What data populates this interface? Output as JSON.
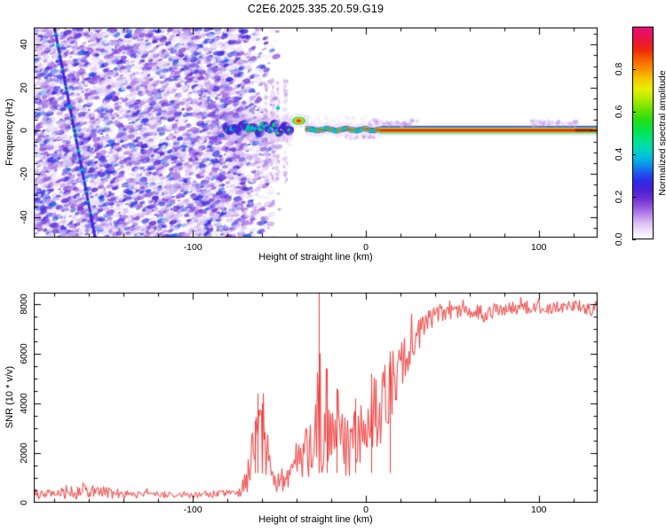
{
  "title": "C2E6.2025.335.20.59.G19",
  "colors": {
    "background": "#ffffff",
    "axis": "#000000",
    "snr_line": "#ee3a3a",
    "noise_purple": "#8f4bd6",
    "band_dark_red": "#8a1212"
  },
  "chart_data": [
    {
      "type": "heatmap",
      "name": "doppler-spectrogram",
      "xlabel": "Height of straight line (km)",
      "ylabel": "Frequency (Hz)",
      "xlim": [
        -192,
        134
      ],
      "ylim": [
        -49.6,
        47.9
      ],
      "x_ticks": {
        "labels": [
          "-100",
          "0",
          "100"
        ],
        "values": [
          -100,
          0,
          100
        ],
        "minor_step": 20
      },
      "y_ticks": {
        "labels": [
          "-40",
          "-20",
          "0",
          "20",
          "40"
        ],
        "values": [
          -40,
          -20,
          0,
          20,
          40
        ],
        "minor_step": 5
      },
      "colorbar": {
        "label": "Normalized spectral amplitude",
        "ticks": {
          "labels": [
            "0.0",
            "0.2",
            "0.4",
            "0.6",
            "0.8"
          ],
          "values": [
            0,
            0.2,
            0.4,
            0.6,
            0.8
          ]
        },
        "range": [
          0,
          1
        ],
        "stops": [
          [
            0.0,
            "#ffffff"
          ],
          [
            0.03,
            "#f1e8fb"
          ],
          [
            0.07,
            "#ddc2f4"
          ],
          [
            0.11,
            "#bb8aea"
          ],
          [
            0.15,
            "#9355dd"
          ],
          [
            0.19,
            "#6d2ed3"
          ],
          [
            0.23,
            "#4a21d6"
          ],
          [
            0.27,
            "#2f2ae2"
          ],
          [
            0.31,
            "#1f55ee"
          ],
          [
            0.35,
            "#0b93ea"
          ],
          [
            0.39,
            "#00c3d8"
          ],
          [
            0.43,
            "#00d9b4"
          ],
          [
            0.47,
            "#00e382"
          ],
          [
            0.52,
            "#07e340"
          ],
          [
            0.57,
            "#2ede0f"
          ],
          [
            0.62,
            "#77e400"
          ],
          [
            0.67,
            "#bdec00"
          ],
          [
            0.71,
            "#e8ef00"
          ],
          [
            0.76,
            "#f6c300"
          ],
          [
            0.8,
            "#f89300"
          ],
          [
            0.85,
            "#f55f00"
          ],
          [
            0.89,
            "#ef2a0a"
          ],
          [
            0.94,
            "#e81440"
          ],
          [
            1.0,
            "#e60f77"
          ]
        ]
      },
      "features": {
        "seed": 1335,
        "noise_field": {
          "km_range": [
            -192,
            -76
          ],
          "fade_end_km": -49,
          "blob_count": 7000
        },
        "vertical_striations_km": [
          -57.5,
          -54,
          -51,
          -46.5
        ],
        "diagonal_streak": {
          "from": [
            -180,
            47.9
          ],
          "to": [
            -156.5,
            -49.6
          ]
        },
        "signal_band": {
          "blob_segment": {
            "km_range": [
              -80.5,
              -43
            ],
            "hz_center": 1.2,
            "hz_jitter": 2.2
          },
          "bright_blob": {
            "km_range": [
              -42,
              -35.5
            ],
            "hz": 4.6
          },
          "dash_segment": {
            "km_range": [
              -35,
              8
            ],
            "hz_center": 0.5
          },
          "solid_segment": {
            "km_range": [
              8,
              134
            ],
            "hz_center": 0.2
          },
          "dark_red_segment_km": [
            121,
            131
          ],
          "stray_dot": {
            "km": -50.8,
            "hz": 10.5
          }
        },
        "fuzz_above_band_km": [
          [
            2,
            30
          ],
          [
            95,
            122
          ]
        ],
        "fuzz_below_band_km": [
          [
            -12,
            6
          ]
        ]
      }
    },
    {
      "type": "line",
      "name": "snr-profile",
      "xlabel": "Height of straight line (km)",
      "ylabel": "SNR (10 * v/v)",
      "xlim": [
        -192,
        134
      ],
      "ylim": [
        0,
        8470
      ],
      "x_ticks": {
        "labels": [
          "-100",
          "0",
          "100"
        ],
        "values": [
          -100,
          0,
          100
        ],
        "minor_step": 20
      },
      "y_ticks": {
        "labels": [
          "0",
          "2000",
          "4000",
          "6000",
          "8000"
        ],
        "values": [
          0,
          2000,
          4000,
          6000,
          8000
        ],
        "minor_step": 500
      },
      "series": [
        {
          "name": "SNR",
          "color": "#ee3a3a",
          "profile_km_base_noise": [
            [
              -192,
              280,
              180
            ],
            [
              -183,
              300,
              200
            ],
            [
              -175,
              380,
              280
            ],
            [
              -164,
              420,
              330
            ],
            [
              -155,
              380,
              280
            ],
            [
              -145,
              330,
              200
            ],
            [
              -135,
              300,
              150
            ],
            [
              -120,
              300,
              140
            ],
            [
              -105,
              300,
              140
            ],
            [
              -90,
              310,
              150
            ],
            [
              -80,
              330,
              160
            ],
            [
              -73,
              400,
              200
            ],
            [
              -69,
              900,
              600
            ],
            [
              -66,
              1800,
              1100
            ],
            [
              -62,
              2600,
              1600
            ],
            [
              -59,
              2200,
              1400
            ],
            [
              -56,
              1300,
              800
            ],
            [
              -53,
              700,
              350
            ],
            [
              -50,
              650,
              300
            ],
            [
              -47,
              900,
              500
            ],
            [
              -43,
              1100,
              700
            ],
            [
              -40,
              1500,
              900
            ],
            [
              -36,
              1800,
              1100
            ],
            [
              -32,
              2000,
              1200
            ],
            [
              -29,
              2400,
              1500
            ],
            [
              -27,
              3000,
              2200
            ],
            [
              -25,
              2600,
              1700
            ],
            [
              -22,
              3200,
              1900
            ],
            [
              -18,
              2800,
              1700
            ],
            [
              -14,
              2400,
              1500
            ],
            [
              -10,
              1700,
              900
            ],
            [
              -7,
              2200,
              1300
            ],
            [
              -4,
              2600,
              1500
            ],
            [
              0,
              2900,
              1600
            ],
            [
              4,
              3300,
              1600
            ],
            [
              8,
              3600,
              1500
            ],
            [
              12,
              4100,
              1400
            ],
            [
              16,
              4700,
              1300
            ],
            [
              20,
              5300,
              1100
            ],
            [
              24,
              5900,
              900
            ],
            [
              28,
              6500,
              750
            ],
            [
              32,
              6900,
              600
            ],
            [
              36,
              7250,
              480
            ],
            [
              40,
              7450,
              380
            ],
            [
              45,
              7600,
              300
            ],
            [
              55,
              7700,
              270
            ],
            [
              65,
              7650,
              320
            ],
            [
              68,
              7500,
              380
            ],
            [
              75,
              7750,
              260
            ],
            [
              85,
              7800,
              260
            ],
            [
              95,
              7780,
              280
            ],
            [
              105,
              7820,
              260
            ],
            [
              115,
              7800,
              280
            ],
            [
              125,
              7850,
              300
            ],
            [
              130,
              7800,
              320
            ],
            [
              134,
              7780,
              280
            ]
          ],
          "spikes_km_value": [
            [
              -64,
              3300
            ],
            [
              -62.5,
              4400
            ],
            [
              -60,
              4000
            ],
            [
              -27,
              8460
            ],
            [
              -22.5,
              5400
            ],
            [
              -17,
              4600
            ],
            [
              -6,
              4200
            ],
            [
              3,
              5200
            ],
            [
              14,
              6100
            ]
          ],
          "seed": 9119
        }
      ]
    }
  ]
}
